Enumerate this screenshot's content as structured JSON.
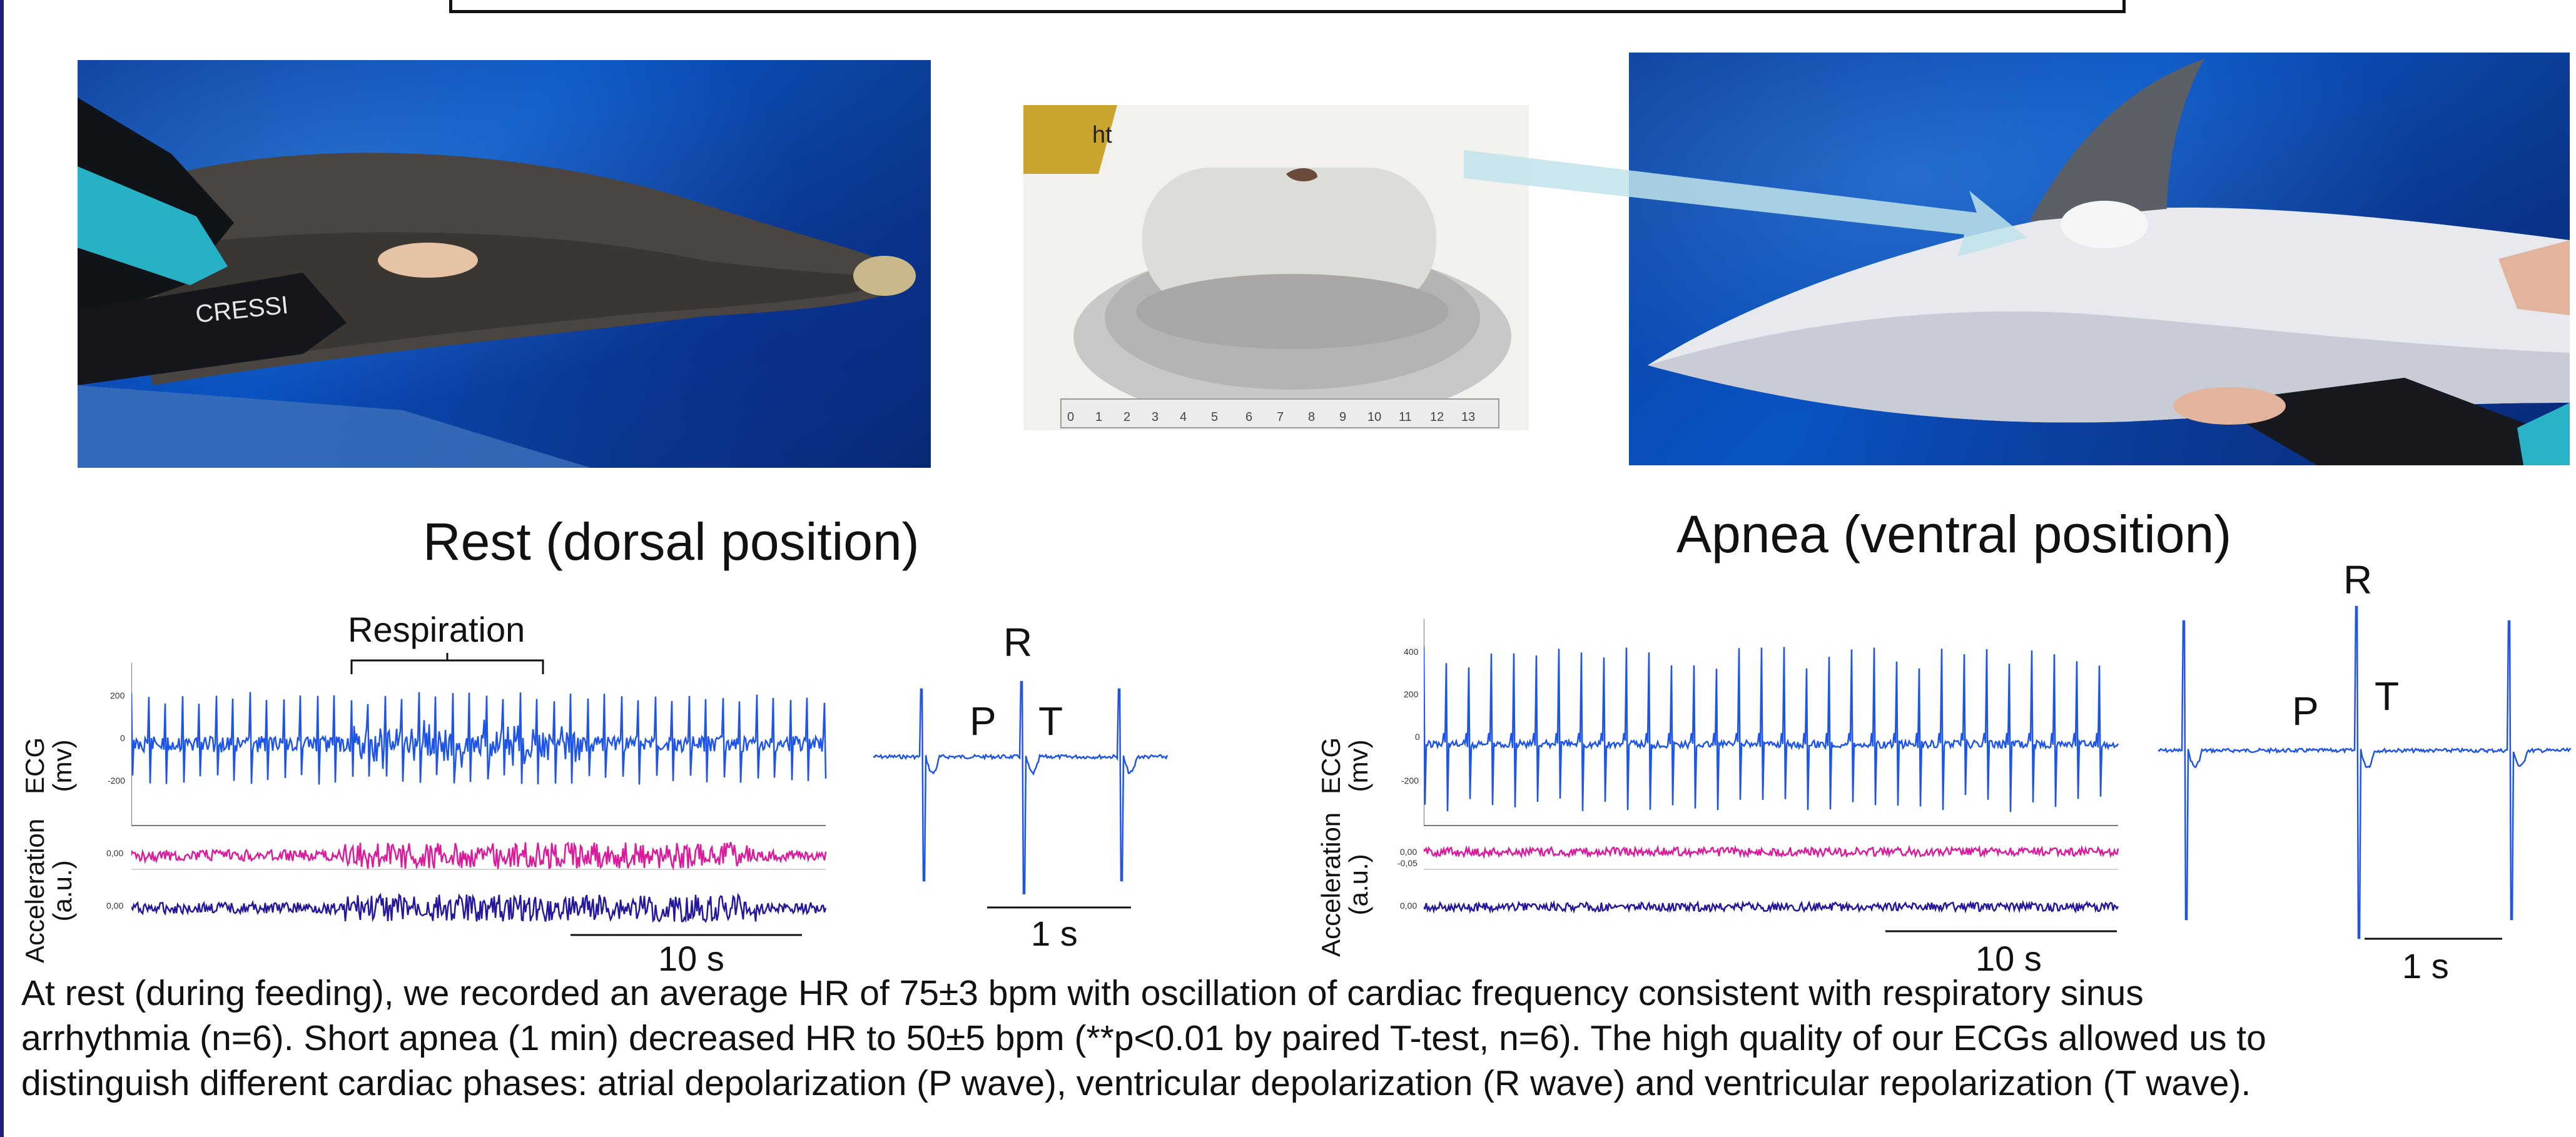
{
  "photos": {
    "left": {
      "logo_text": "CRESSI"
    },
    "ruler": {
      "ticks": [
        "0",
        "1",
        "2",
        "3",
        "4",
        "5",
        "6",
        "7",
        "8",
        "9",
        "10",
        "11",
        "12",
        "13"
      ],
      "corner_text": "ht"
    }
  },
  "sections": {
    "rest": {
      "label": "Rest (dorsal position)",
      "respiration_label": "Respiration",
      "ecg_axis_label": [
        "ECG",
        "(mv)"
      ],
      "acc_axis_label": [
        "Acceleration",
        "(a.u.)"
      ],
      "ecg_ticks": [
        "200",
        "0",
        "-200"
      ],
      "acc_ticks": [
        "0,00",
        "0,00"
      ],
      "trace_scale": "10 s",
      "beat_scale": "1 s",
      "beat_letters": {
        "P": "P",
        "R": "R",
        "T": "T"
      }
    },
    "apnea": {
      "label": "Apnea (ventral position)",
      "ecg_axis_label": [
        "ECG",
        "(mv)"
      ],
      "acc_axis_label": [
        "Acceleration",
        "(a.u.)"
      ],
      "ecg_ticks": [
        "400",
        "200",
        "0",
        "-200"
      ],
      "acc_ticks": [
        "0,00",
        "-0,05",
        "0,00"
      ],
      "trace_scale": "10 s",
      "beat_scale": "1 s",
      "beat_letters": {
        "P": "P",
        "R": "R",
        "T": "T"
      }
    }
  },
  "caption": {
    "lines": [
      "At rest (during feeding), we recorded an average HR of 75±3 bpm with oscillation of cardiac frequency consistent with respiratory sinus",
      "arrhythmia (n=6). Short apnea (1 min) decreased HR to 50±5 bpm (**p<0.01 by paired T-test, n=6). The high quality of our ECGs allowed us to",
      "distinguish different cardiac phases: atrial depolarization (P wave), ventricular depolarization (R wave) and ventricular repolarization (T wave)."
    ]
  },
  "colors": {
    "ecg": "#1f55e6",
    "acc_x": "#d81c9b",
    "acc_z": "#23189a",
    "frame": "#1f1f7a"
  }
}
